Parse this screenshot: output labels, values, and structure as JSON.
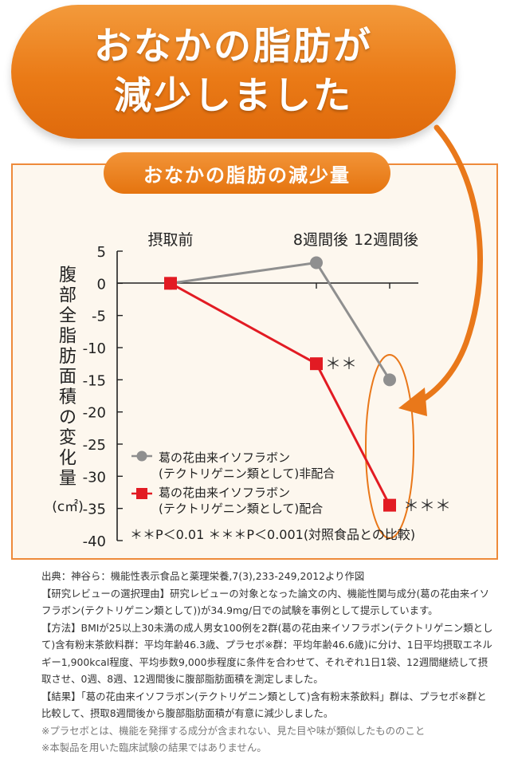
{
  "banner": {
    "line1": "おなかの脂肪が",
    "line2": "減少しました"
  },
  "colors": {
    "accent_orange": "#e9781a",
    "series_red": "#e21b23",
    "series_gray": "#8f8f8f"
  },
  "chart_data": {
    "type": "line",
    "title": "おなかの脂肪の減少量",
    "ylabel": "腹部全脂肪面積の変化量",
    "yunit": "(c㎡)",
    "categories": [
      "摂取前",
      "8週間後",
      "12週間後"
    ],
    "ylim": [
      -40,
      5
    ],
    "yticks": [
      "5",
      "0",
      "-5",
      "-10",
      "-15",
      "-20",
      "-25",
      "-30",
      "-35",
      "-40"
    ],
    "series": [
      {
        "name": "葛の花由来イソフラボン(テクトリゲニン類として)非配合",
        "values": [
          0,
          3.2,
          -15
        ]
      },
      {
        "name": "葛の花由来イソフラボン(テクトリゲニン類として)配合",
        "values": [
          0,
          -12.5,
          -34.5
        ]
      }
    ],
    "legend": [
      {
        "line1": "葛の花由来イソフラボン",
        "line2": "(テクトリゲニン類として)非配合"
      },
      {
        "line1": "葛の花由来イソフラボン",
        "line2": "(テクトリゲニン類として)配合"
      }
    ],
    "annotations": {
      "week8_mark": "＊＊",
      "week12_mark": "＊＊＊",
      "significance_note": "＊＊P＜0.01 ＊＊＊P＜0.001(対照食品との比較)"
    },
    "legend_position": "bottom-left",
    "grid": false
  },
  "notes": {
    "source": "出典：神谷ら：機能性表示食品と薬理栄養,7(3),233-249,2012より作図",
    "reason": "【研究レビューの選択理由】研究レビューの対象となった論文の内、機能性関与成分(葛の花由来イソフラボン(テクトリゲニン類として))が34.9mg/日での試験を事例として提示しています。",
    "method": "【方法】BMIが25以上30未満の成人男女100例を2群(葛の花由来イソフラボン(テクトリゲニン類として)含有粉末茶飲料群：平均年齢46.3歳、プラセボ※群：平均年齢46.6歳)に分け、1日平均摂取エネルギー1,900kcal程度、平均歩数9,000歩程度に条件を合わせて、それぞれ1日1袋、12週間継続して摂取させ、0週、8週、12週間後に腹部脂肪面積を測定しました。",
    "result": "【結果】「葛の花由来イソフラボン(テクトリゲニン類として)含有粉末茶飲料」群は、プラセボ※群と比較して、摂取8週間後から腹部脂肪面積が有意に減少しました。",
    "placebo": "※プラセボとは、機能を発揮する成分が含まれない、見た目や味が類似したもののこと",
    "disclaimer": "※本製品を用いた臨床試験の結果ではありません。"
  }
}
